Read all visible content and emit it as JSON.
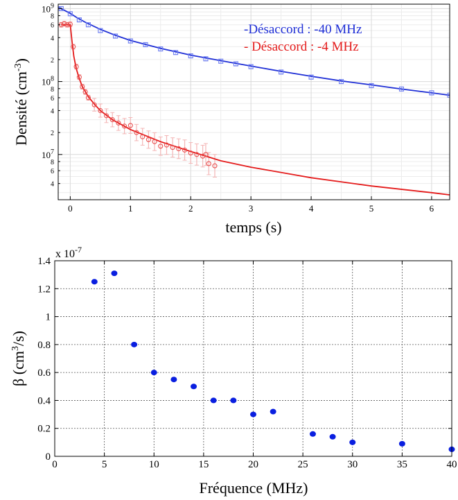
{
  "chart_data": [
    {
      "type": "line",
      "xlabel": "temps (s)",
      "ylabel": "Densité",
      "ylabel_unit_base": "(cm",
      "ylabel_unit_exp": "-3",
      "ylabel_unit_end": ")",
      "xlim": [
        -0.2,
        6.3
      ],
      "ylim": [
        2400000.0,
        1150000000.0
      ],
      "yscale": "log",
      "grid": true,
      "x_ticks": [
        0,
        1,
        2,
        3,
        4,
        5,
        6
      ],
      "x_tick_labels": [
        "0",
        "1",
        "2",
        "3",
        "4",
        "5",
        "6"
      ],
      "y_major": [
        {
          "value": 10000000.0,
          "mantissa": "10",
          "exp": "7"
        },
        {
          "value": 100000000.0,
          "mantissa": "10",
          "exp": "8"
        },
        {
          "value": 1000000000.0,
          "mantissa": "10",
          "exp": "9"
        }
      ],
      "y_minor": [
        {
          "value": 4000000.0,
          "label": "4"
        },
        {
          "value": 6000000.0,
          "label": "6"
        },
        {
          "value": 8000000.0,
          "label": "8"
        },
        {
          "value": 20000000.0,
          "label": "2"
        },
        {
          "value": 40000000.0,
          "label": "4"
        },
        {
          "value": 60000000.0,
          "label": "6"
        },
        {
          "value": 80000000.0,
          "label": "8"
        },
        {
          "value": 200000000.0,
          "label": "2"
        },
        {
          "value": 400000000.0,
          "label": "4"
        },
        {
          "value": 600000000.0,
          "label": "6"
        },
        {
          "value": 800000000.0,
          "label": "8"
        }
      ],
      "legend_position": "top-right",
      "series": [
        {
          "name": "-Désaccord : -40 MHz",
          "color": "#1f2fd6",
          "marker_color": "#6f7ff0",
          "errorbar_color": "#b3bdf7",
          "marker": "square",
          "x": [
            -0.15,
            0.0,
            0.15,
            0.3,
            0.5,
            0.75,
            1.0,
            1.25,
            1.5,
            1.75,
            2.0,
            2.25,
            2.5,
            2.75,
            3.0,
            3.5,
            4.0,
            4.5,
            5.0,
            5.5,
            6.0,
            6.3
          ],
          "y": [
            1000000000.0,
            850000000.0,
            700000000.0,
            600000000.0,
            500000000.0,
            420000000.0,
            360000000.0,
            320000000.0,
            280000000.0,
            250000000.0,
            225000000.0,
            205000000.0,
            190000000.0,
            175000000.0,
            160000000.0,
            135000000.0,
            115000000.0,
            100000000.0,
            88000000.0,
            79000000.0,
            70000000.0,
            65000000.0
          ],
          "fit_x": [
            -0.2,
            0.0,
            0.1,
            0.25,
            0.5,
            0.75,
            1.0,
            1.5,
            2.0,
            2.5,
            3.0,
            3.5,
            4.0,
            4.5,
            5.0,
            5.5,
            6.0,
            6.3
          ],
          "fit_y": [
            1050000000.0,
            860000000.0,
            760000000.0,
            650000000.0,
            520000000.0,
            430000000.0,
            365000000.0,
            285000000.0,
            230000000.0,
            193000000.0,
            163000000.0,
            138000000.0,
            118000000.0,
            102000000.0,
            90000000.0,
            79000000.0,
            70000000.0,
            65000000.0
          ]
        },
        {
          "name": "- Désaccord : -4 MHz",
          "color": "#e41a1a",
          "marker_color": "#e85050",
          "errorbar_color": "#f4b6b6",
          "marker": "circle",
          "x": [
            -0.15,
            -0.1,
            -0.05,
            0.0,
            0.05,
            0.1,
            0.15,
            0.2,
            0.25,
            0.3,
            0.4,
            0.5,
            0.6,
            0.7,
            0.8,
            0.9,
            1.0,
            1.1,
            1.2,
            1.3,
            1.4,
            1.5,
            1.6,
            1.7,
            1.8,
            1.9,
            2.0,
            2.1,
            2.2,
            2.25,
            2.3,
            2.4
          ],
          "y": [
            600000000.0,
            620000000.0,
            600000000.0,
            610000000.0,
            300000000.0,
            160000000.0,
            115000000.0,
            85000000.0,
            72000000.0,
            60000000.0,
            48000000.0,
            40000000.0,
            34000000.0,
            30000000.0,
            27000000.0,
            24500000.0,
            25000000.0,
            20000000.0,
            17500000.0,
            16000000.0,
            15000000.0,
            13000000.0,
            13500000.0,
            12500000.0,
            12000000.0,
            11500000.0,
            10500000.0,
            10000000.0,
            9500000.0,
            10000000.0,
            7500000.0,
            7000000.0
          ],
          "fit_x": [
            -0.15,
            -0.02,
            0.0,
            0.03,
            0.06,
            0.1,
            0.15,
            0.2,
            0.3,
            0.4,
            0.5,
            0.7,
            1.0,
            1.5,
            2.0,
            2.5,
            3.0,
            4.0,
            5.0,
            6.0,
            6.3
          ],
          "fit_y": [
            600000000.0,
            600000000.0,
            600000000.0,
            350000000.0,
            220000000.0,
            150000000.0,
            110000000.0,
            85000000.0,
            62000000.0,
            49000000.0,
            40000000.0,
            30000000.0,
            22000000.0,
            15000000.0,
            11000000.0,
            8200000.0,
            6700000.0,
            4800000.0,
            3700000.0,
            3000000.0,
            2800000.0
          ]
        }
      ]
    },
    {
      "type": "scatter",
      "xlabel": "Fréquence (MHz)",
      "ylabel_symbol": "β (cm",
      "ylabel_exp": "3",
      "ylabel_end": "/s)",
      "y_multiplier_base": "x 10",
      "y_multiplier_exp": "-7",
      "xlim": [
        0,
        40
      ],
      "ylim": [
        0,
        1.4
      ],
      "grid": true,
      "x_ticks": [
        0,
        5,
        10,
        15,
        20,
        25,
        30,
        35,
        40
      ],
      "x_tick_labels": [
        "0",
        "5",
        "10",
        "15",
        "20",
        "25",
        "30",
        "35",
        "40"
      ],
      "y_ticks": [
        0,
        0.2,
        0.4,
        0.6,
        0.8,
        1.0,
        1.2,
        1.4
      ],
      "y_tick_labels": [
        "0",
        "0.2",
        "0.4",
        "0.6",
        "0.8",
        "1",
        "1.2",
        "1.4"
      ],
      "marker_color": "#0a1fe0",
      "x": [
        4,
        6,
        8,
        10,
        12,
        14,
        16,
        18,
        20,
        22,
        26,
        28,
        30,
        35,
        40
      ],
      "y": [
        1.25,
        1.31,
        0.8,
        0.6,
        0.55,
        0.5,
        0.4,
        0.4,
        0.3,
        0.32,
        0.16,
        0.14,
        0.1,
        0.09,
        0.05
      ]
    }
  ]
}
